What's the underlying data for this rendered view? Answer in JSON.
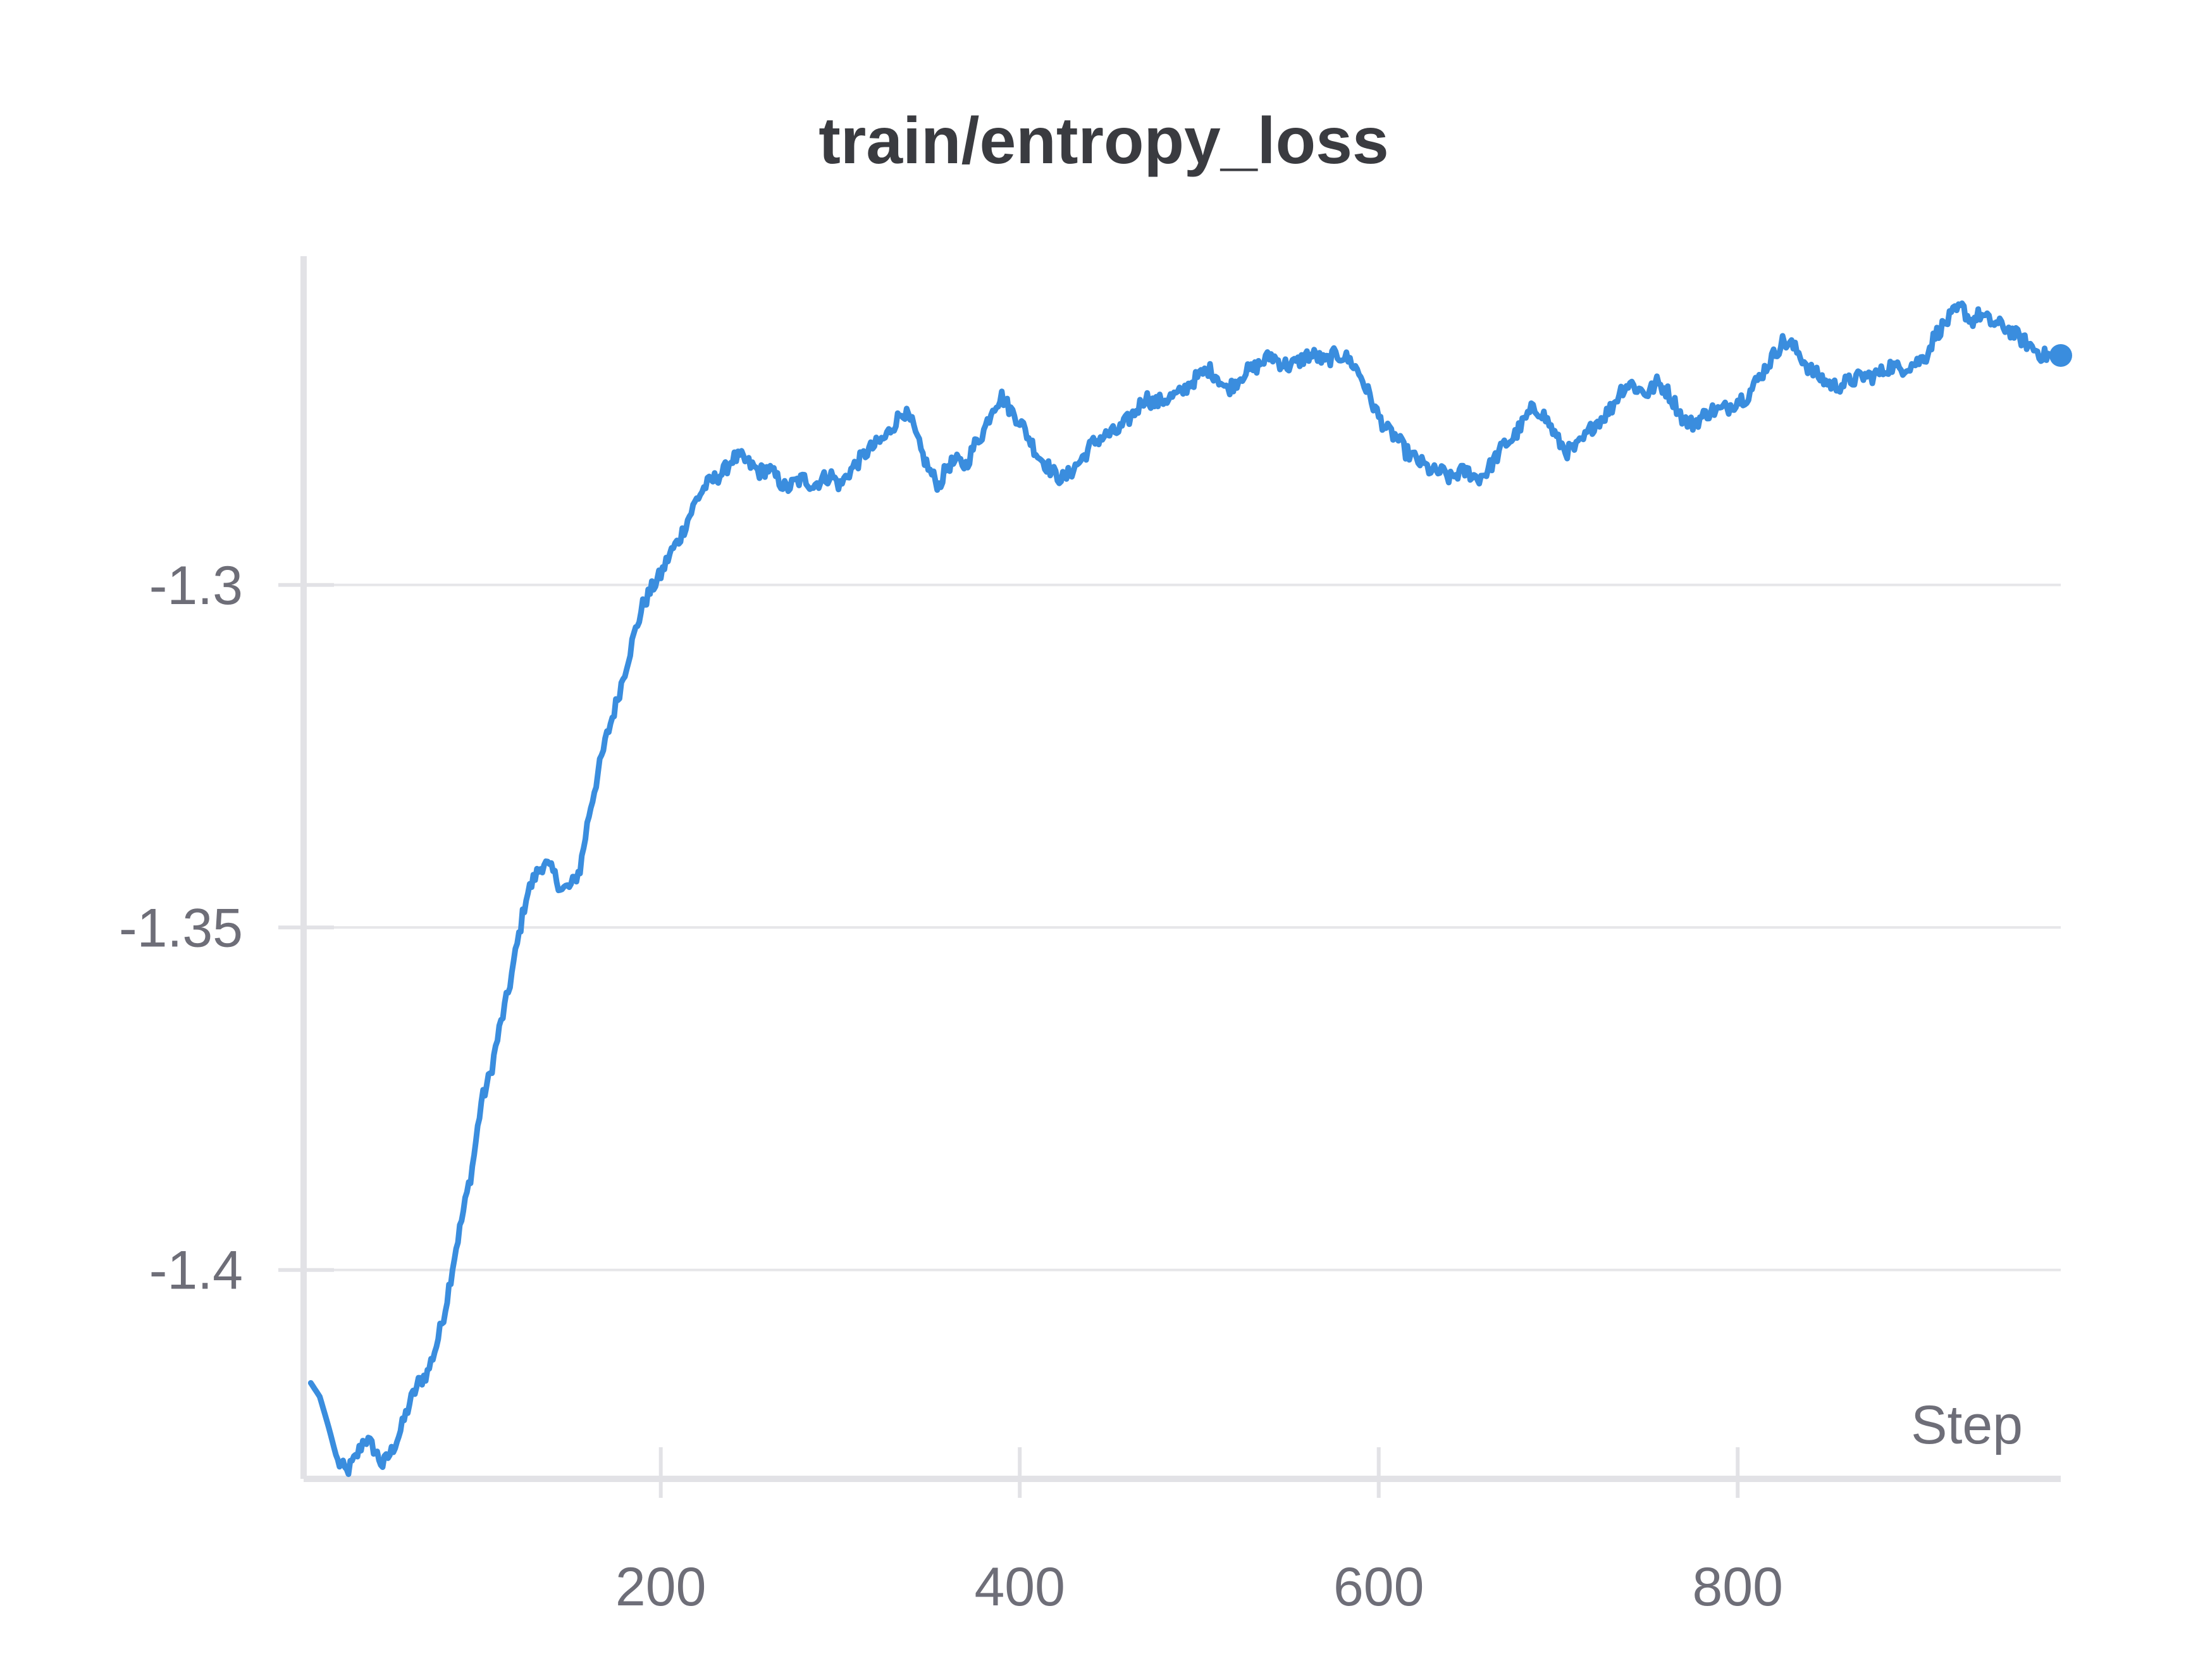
{
  "chart_data": {
    "type": "line",
    "title": "train/entropy_loss",
    "xlabel": "Step",
    "ylabel": "",
    "xlim": [
      1,
      980
    ],
    "ylim": [
      -1.4305,
      -1.252
    ],
    "xticks": [
      200,
      400,
      600,
      800
    ],
    "xtick_labels": [
      "200",
      "400",
      "600",
      "800"
    ],
    "yticks": [
      -1.4,
      -1.35,
      -1.3
    ],
    "ytick_labels": [
      "-1.4",
      "-1.35",
      "-1.3"
    ],
    "grid": "horizontal",
    "legend": "none",
    "series": [
      {
        "color": "#3a8dde",
        "end_marker": true,
        "points": [
          [
            5,
            -1.4165
          ],
          [
            10,
            -1.4185
          ],
          [
            15,
            -1.423
          ],
          [
            20,
            -1.428
          ],
          [
            25,
            -1.4295
          ],
          [
            30,
            -1.4275
          ],
          [
            35,
            -1.4245
          ],
          [
            40,
            -1.426
          ],
          [
            45,
            -1.4285
          ],
          [
            50,
            -1.4265
          ],
          [
            55,
            -1.4235
          ],
          [
            60,
            -1.4195
          ],
          [
            65,
            -1.4165
          ],
          [
            70,
            -1.415
          ],
          [
            75,
            -1.411
          ],
          [
            80,
            -1.4055
          ],
          [
            85,
            -1.398
          ],
          [
            90,
            -1.3915
          ],
          [
            95,
            -1.385
          ],
          [
            100,
            -1.3755
          ],
          [
            105,
            -1.3715
          ],
          [
            110,
            -1.365
          ],
          [
            115,
            -1.3595
          ],
          [
            120,
            -1.3525
          ],
          [
            125,
            -1.3455
          ],
          [
            130,
            -1.3425
          ],
          [
            135,
            -1.3405
          ],
          [
            140,
            -1.342
          ],
          [
            145,
            -1.3445
          ],
          [
            150,
            -1.344
          ],
          [
            155,
            -1.3415
          ],
          [
            160,
            -1.3335
          ],
          [
            165,
            -1.3275
          ],
          [
            170,
            -1.322
          ],
          [
            175,
            -1.3175
          ],
          [
            180,
            -1.3125
          ],
          [
            185,
            -1.3075
          ],
          [
            190,
            -1.303
          ],
          [
            195,
            -1.3005
          ],
          [
            200,
            -1.2985
          ],
          [
            205,
            -1.2955
          ],
          [
            210,
            -1.2935
          ],
          [
            215,
            -1.2905
          ],
          [
            220,
            -1.2875
          ],
          [
            225,
            -1.2855
          ],
          [
            230,
            -1.2845
          ],
          [
            235,
            -1.2835
          ],
          [
            240,
            -1.2815
          ],
          [
            245,
            -1.2815
          ],
          [
            250,
            -1.2825
          ],
          [
            255,
            -1.2835
          ],
          [
            260,
            -1.283
          ],
          [
            265,
            -1.2845
          ],
          [
            270,
            -1.286
          ],
          [
            275,
            -1.285
          ],
          [
            280,
            -1.2845
          ],
          [
            285,
            -1.2855
          ],
          [
            290,
            -1.2845
          ],
          [
            295,
            -1.284
          ],
          [
            300,
            -1.2855
          ],
          [
            305,
            -1.2835
          ],
          [
            310,
            -1.282
          ],
          [
            315,
            -1.2805
          ],
          [
            320,
            -1.2795
          ],
          [
            325,
            -1.2785
          ],
          [
            330,
            -1.2765
          ],
          [
            335,
            -1.2745
          ],
          [
            340,
            -1.2765
          ],
          [
            345,
            -1.2805
          ],
          [
            350,
            -1.2835
          ],
          [
            355,
            -1.2855
          ],
          [
            360,
            -1.2825
          ],
          [
            365,
            -1.282
          ],
          [
            370,
            -1.2825
          ],
          [
            375,
            -1.2795
          ],
          [
            380,
            -1.2775
          ],
          [
            385,
            -1.274
          ],
          [
            390,
            -1.2725
          ],
          [
            395,
            -1.2745
          ],
          [
            400,
            -1.276
          ],
          [
            405,
            -1.2785
          ],
          [
            410,
            -1.281
          ],
          [
            415,
            -1.2825
          ],
          [
            420,
            -1.284
          ],
          [
            425,
            -1.2845
          ],
          [
            430,
            -1.283
          ],
          [
            435,
            -1.2815
          ],
          [
            440,
            -1.2795
          ],
          [
            445,
            -1.2785
          ],
          [
            450,
            -1.278
          ],
          [
            455,
            -1.2775
          ],
          [
            460,
            -1.276
          ],
          [
            465,
            -1.2745
          ],
          [
            470,
            -1.2725
          ],
          [
            475,
            -1.2735
          ],
          [
            480,
            -1.273
          ],
          [
            485,
            -1.2725
          ],
          [
            490,
            -1.272
          ],
          [
            495,
            -1.2705
          ],
          [
            500,
            -1.2695
          ],
          [
            505,
            -1.2685
          ],
          [
            510,
            -1.2695
          ],
          [
            515,
            -1.2715
          ],
          [
            520,
            -1.2705
          ],
          [
            525,
            -1.269
          ],
          [
            530,
            -1.2685
          ],
          [
            535,
            -1.2675
          ],
          [
            540,
            -1.2665
          ],
          [
            545,
            -1.2675
          ],
          [
            550,
            -1.268
          ],
          [
            555,
            -1.2675
          ],
          [
            560,
            -1.2665
          ],
          [
            565,
            -1.2665
          ],
          [
            570,
            -1.2675
          ],
          [
            575,
            -1.2665
          ],
          [
            580,
            -1.2665
          ],
          [
            585,
            -1.2675
          ],
          [
            590,
            -1.2695
          ],
          [
            595,
            -1.2725
          ],
          [
            600,
            -1.2755
          ],
          [
            605,
            -1.2775
          ],
          [
            610,
            -1.2785
          ],
          [
            615,
            -1.2805
          ],
          [
            620,
            -1.2815
          ],
          [
            625,
            -1.2825
          ],
          [
            630,
            -1.2835
          ],
          [
            635,
            -1.2835
          ],
          [
            640,
            -1.2845
          ],
          [
            645,
            -1.2835
          ],
          [
            650,
            -1.2835
          ],
          [
            655,
            -1.2845
          ],
          [
            660,
            -1.2835
          ],
          [
            665,
            -1.2815
          ],
          [
            670,
            -1.2795
          ],
          [
            675,
            -1.2785
          ],
          [
            680,
            -1.2765
          ],
          [
            685,
            -1.2745
          ],
          [
            690,
            -1.2745
          ],
          [
            695,
            -1.2765
          ],
          [
            700,
            -1.279
          ],
          [
            705,
            -1.2805
          ],
          [
            710,
            -1.28
          ],
          [
            715,
            -1.2785
          ],
          [
            720,
            -1.2765
          ],
          [
            725,
            -1.2755
          ],
          [
            730,
            -1.274
          ],
          [
            735,
            -1.2715
          ],
          [
            740,
            -1.2705
          ],
          [
            745,
            -1.2715
          ],
          [
            750,
            -1.272
          ],
          [
            755,
            -1.2705
          ],
          [
            760,
            -1.2715
          ],
          [
            765,
            -1.2735
          ],
          [
            770,
            -1.276
          ],
          [
            775,
            -1.2765
          ],
          [
            780,
            -1.2755
          ],
          [
            785,
            -1.2745
          ],
          [
            790,
            -1.2745
          ],
          [
            795,
            -1.274
          ],
          [
            800,
            -1.273
          ],
          [
            805,
            -1.2725
          ],
          [
            810,
            -1.2705
          ],
          [
            815,
            -1.2685
          ],
          [
            820,
            -1.2665
          ],
          [
            825,
            -1.2645
          ],
          [
            830,
            -1.265
          ],
          [
            835,
            -1.2665
          ],
          [
            840,
            -1.2685
          ],
          [
            845,
            -1.2695
          ],
          [
            850,
            -1.2705
          ],
          [
            855,
            -1.271
          ],
          [
            860,
            -1.2705
          ],
          [
            865,
            -1.27
          ],
          [
            870,
            -1.2695
          ],
          [
            875,
            -1.2695
          ],
          [
            880,
            -1.269
          ],
          [
            885,
            -1.268
          ],
          [
            890,
            -1.2685
          ],
          [
            895,
            -1.268
          ],
          [
            900,
            -1.2675
          ],
          [
            905,
            -1.2665
          ],
          [
            910,
            -1.2635
          ],
          [
            915,
            -1.262
          ],
          [
            920,
            -1.2605
          ],
          [
            925,
            -1.2595
          ],
          [
            930,
            -1.2615
          ],
          [
            935,
            -1.2605
          ],
          [
            940,
            -1.2615
          ],
          [
            945,
            -1.262
          ],
          [
            950,
            -1.2625
          ],
          [
            955,
            -1.2635
          ],
          [
            960,
            -1.2645
          ],
          [
            965,
            -1.2655
          ],
          [
            970,
            -1.2665
          ],
          [
            975,
            -1.2665
          ],
          [
            980,
            -1.2665
          ]
        ]
      }
    ]
  }
}
